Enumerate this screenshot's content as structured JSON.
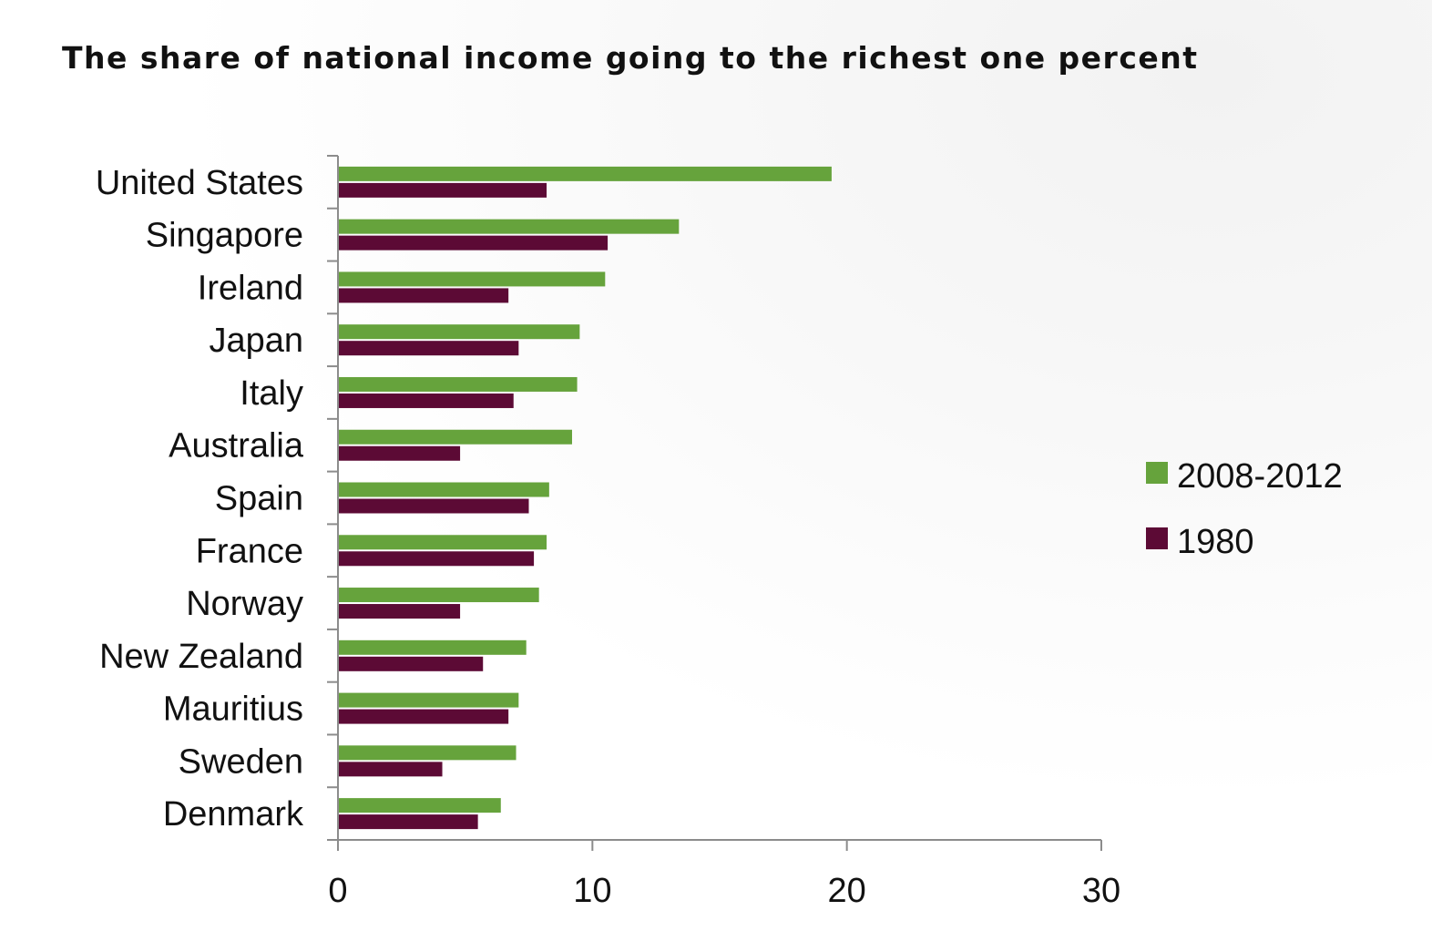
{
  "chart_data": {
    "type": "bar",
    "orientation": "horizontal",
    "title": "The share of national income going to the richest one percent",
    "categories": [
      "United States",
      "Singapore",
      "Ireland",
      "Japan",
      "Italy",
      "Australia",
      "Spain",
      "France",
      "Norway",
      "New Zealand",
      "Mauritius",
      "Sweden",
      "Denmark"
    ],
    "series": [
      {
        "name": "2008-2012",
        "color": "#66a33c",
        "values": [
          19.4,
          13.4,
          10.5,
          9.5,
          9.4,
          9.2,
          8.3,
          8.2,
          7.9,
          7.4,
          7.1,
          7.0,
          6.4
        ]
      },
      {
        "name": "1980",
        "color": "#5c0a35",
        "values": [
          8.2,
          10.6,
          6.7,
          7.1,
          6.9,
          4.8,
          7.5,
          7.7,
          4.8,
          5.7,
          6.7,
          4.1,
          5.5
        ]
      }
    ],
    "xticks": [
      "0",
      "10",
      "20",
      "30"
    ],
    "xlim": [
      0,
      30
    ],
    "legend_position": "right",
    "grid": false
  }
}
